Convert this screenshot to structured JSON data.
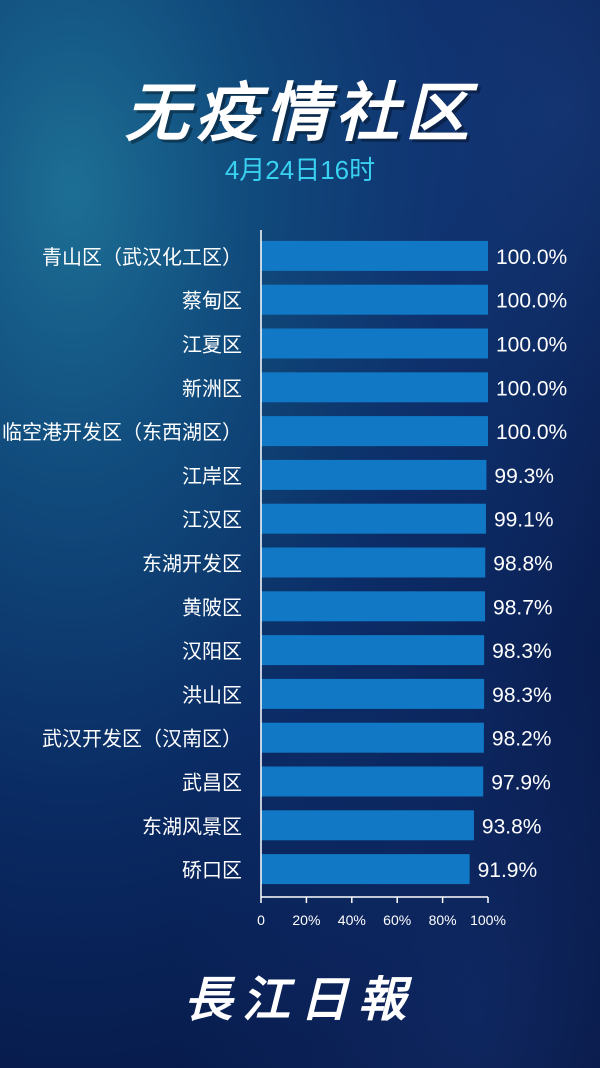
{
  "header": {
    "title": "无疫情社区",
    "subtitle": "4月24日16时"
  },
  "brand": "長江日報",
  "colors": {
    "bar": "#1078c4",
    "subtitle": "#39d1f0",
    "text": "#ffffff"
  },
  "chart_data": {
    "type": "bar",
    "orientation": "horizontal",
    "categories": [
      "青山区（武汉化工区）",
      "蔡甸区",
      "江夏区",
      "新洲区",
      "临空港开发区（东西湖区）",
      "江岸区",
      "江汉区",
      "东湖开发区",
      "黄陂区",
      "汉阳区",
      "洪山区",
      "武汉开发区（汉南区）",
      "武昌区",
      "东湖风景区",
      "硚口区"
    ],
    "values": [
      100.0,
      100.0,
      100.0,
      100.0,
      100.0,
      99.3,
      99.1,
      98.8,
      98.7,
      98.3,
      98.3,
      98.2,
      97.9,
      93.8,
      91.9
    ],
    "value_labels": [
      "100.0%",
      "100.0%",
      "100.0%",
      "100.0%",
      "100.0%",
      "99.3%",
      "99.1%",
      "98.8%",
      "98.7%",
      "98.3%",
      "98.3%",
      "98.2%",
      "97.9%",
      "93.8%",
      "91.9%"
    ],
    "xlim": [
      0,
      100
    ],
    "xticks": [
      "0",
      "20%",
      "40%",
      "60%",
      "80%",
      "100%"
    ],
    "grid": false,
    "legend": "none"
  }
}
